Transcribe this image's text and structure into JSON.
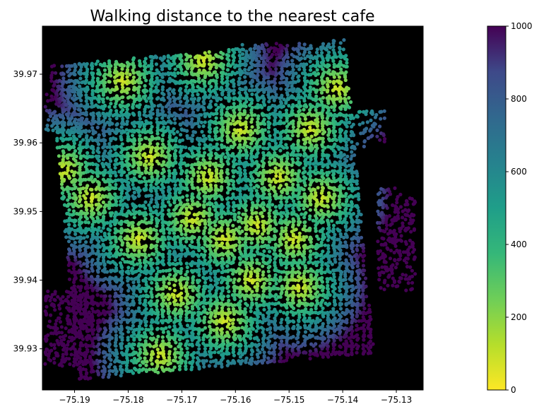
{
  "title": "Walking distance to the nearest cafe",
  "chart_data": {
    "type": "scatter",
    "title": "Walking distance to the nearest cafe",
    "xlim": [
      -75.196,
      -75.125
    ],
    "ylim": [
      39.924,
      39.977
    ],
    "x_ticks": [
      -75.19,
      -75.18,
      -75.17,
      -75.16,
      -75.15,
      -75.14,
      -75.13
    ],
    "x_tick_labels": [
      "−75.19",
      "−75.18",
      "−75.17",
      "−75.16",
      "−75.15",
      "−75.14",
      "−75.13"
    ],
    "y_ticks": [
      39.93,
      39.94,
      39.95,
      39.96,
      39.97
    ],
    "y_tick_labels": [
      "39.93",
      "39.94",
      "39.95",
      "39.96",
      "39.97"
    ],
    "background": "#000000",
    "colormap": "viridis_r",
    "color_range": [
      0,
      1000
    ],
    "colorbar_ticks": [
      0,
      200,
      400,
      600,
      800,
      1000
    ],
    "colorbar_tick_labels": [
      "0",
      "200",
      "400",
      "600",
      "800",
      "1000"
    ],
    "cafe_hotspots": [
      {
        "x": -75.181,
        "y": 39.969
      },
      {
        "x": -75.166,
        "y": 39.972
      },
      {
        "x": -75.146,
        "y": 39.962
      },
      {
        "x": -75.141,
        "y": 39.968
      },
      {
        "x": -75.192,
        "y": 39.956
      },
      {
        "x": -75.187,
        "y": 39.952
      },
      {
        "x": -75.176,
        "y": 39.958
      },
      {
        "x": -75.165,
        "y": 39.955
      },
      {
        "x": -75.159,
        "y": 39.962
      },
      {
        "x": -75.152,
        "y": 39.955
      },
      {
        "x": -75.144,
        "y": 39.952
      },
      {
        "x": -75.178,
        "y": 39.946
      },
      {
        "x": -75.168,
        "y": 39.949
      },
      {
        "x": -75.162,
        "y": 39.946
      },
      {
        "x": -75.156,
        "y": 39.948
      },
      {
        "x": -75.149,
        "y": 39.946
      },
      {
        "x": -75.171,
        "y": 39.938
      },
      {
        "x": -75.157,
        "y": 39.94
      },
      {
        "x": -75.148,
        "y": 39.939
      },
      {
        "x": -75.162,
        "y": 39.934
      },
      {
        "x": -75.174,
        "y": 39.929
      }
    ]
  }
}
